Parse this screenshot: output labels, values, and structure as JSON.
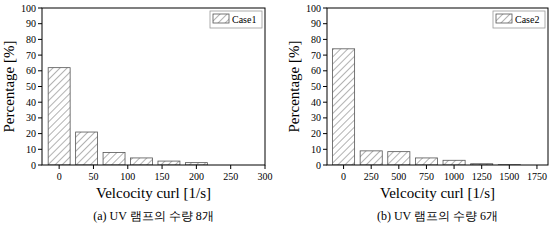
{
  "chart_data": [
    {
      "type": "bar",
      "title": "(a) UV 램프의 수량 8개",
      "x_label": "Velcocity curl [1/s]",
      "y_label": "Percentage [%]",
      "x": [
        0,
        40,
        80,
        120,
        160,
        200
      ],
      "series": [
        {
          "name": "Case1",
          "color": "#555555",
          "values": [
            62,
            21,
            8,
            4.5,
            2.5,
            1.5
          ]
        }
      ],
      "xlim": [
        -25,
        300
      ],
      "xticks": [
        0,
        50,
        100,
        150,
        200,
        250,
        300
      ],
      "ylim": [
        0,
        100
      ],
      "yticks": [
        0,
        10,
        20,
        30,
        40,
        50,
        60,
        70,
        80,
        90,
        100
      ],
      "legend": "upper right"
    },
    {
      "type": "bar",
      "title": "(b) UV 램프의 수량 6개",
      "x_label": "Velcocity curl [1/s]",
      "y_label": "Percentage [%]",
      "x": [
        0,
        250,
        500,
        750,
        1000,
        1250,
        1500
      ],
      "series": [
        {
          "name": "Case2",
          "color": "#555555",
          "values": [
            74,
            9,
            8.5,
            4.5,
            3,
            0.8,
            0.2
          ]
        }
      ],
      "xlim": [
        -150,
        1850
      ],
      "xticks": [
        0,
        250,
        500,
        750,
        1000,
        1250,
        1500,
        1750
      ],
      "ylim": [
        0,
        100
      ],
      "yticks": [
        0,
        10,
        20,
        30,
        40,
        50,
        60,
        70,
        80,
        90,
        100
      ],
      "legend": "upper right"
    }
  ]
}
